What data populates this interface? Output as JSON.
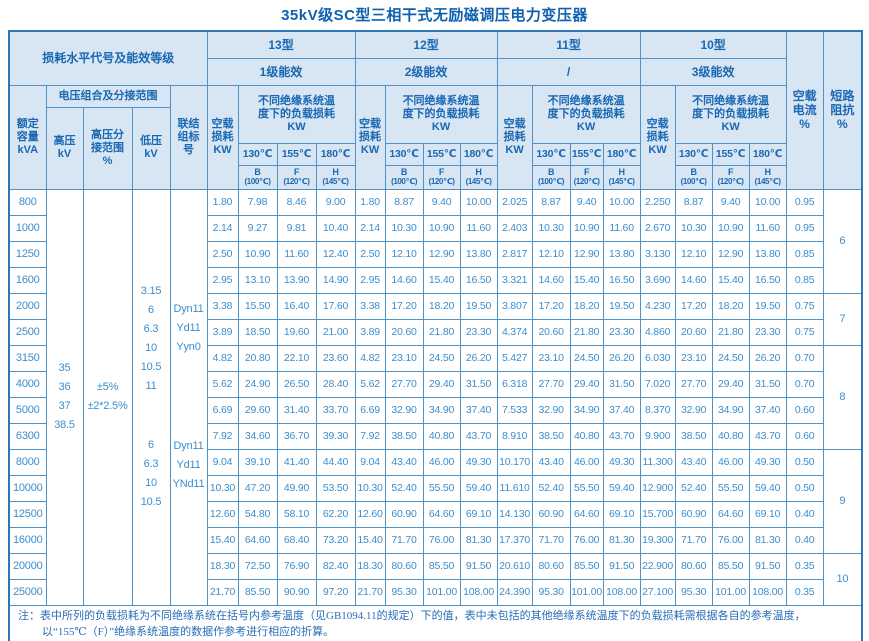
{
  "title": "35kV级SC型三相干式无励磁调压电力变压器",
  "header": {
    "loss_level_label": "损耗水平代号及能效等级",
    "models": [
      {
        "name": "13型",
        "efficiency": "1级能效"
      },
      {
        "name": "12型",
        "efficiency": "2级能效"
      },
      {
        "name": "11型",
        "efficiency": "/"
      },
      {
        "name": "10型",
        "efficiency": "3级能效"
      }
    ],
    "capacity_label": "额定\n容量\nkVA",
    "voltage_group_label": "电压组合及分接范围",
    "hv_label": "高压\nkV",
    "tap_label": "高压分\n接范围\n%",
    "lv_label": "低压\nkV",
    "vector_label": "联结\n组标\n号",
    "no_load_loss_label": "空载\n损耗\nKW",
    "load_loss_label": "不同绝缘系统温\n度下的负载损耗\nKW",
    "temp_cols": [
      {
        "temp": "130℃",
        "class": "B",
        "ref": "(100℃)"
      },
      {
        "temp": "155℃",
        "class": "F",
        "ref": "(120℃)"
      },
      {
        "temp": "180℃",
        "class": "H",
        "ref": "(145℃)"
      }
    ],
    "no_load_current_label": "空载\n电流\n%",
    "impedance_label": "短路\n阻抗\n%"
  },
  "left": {
    "hv_values": [
      "35",
      "36",
      "37",
      "38.5"
    ],
    "tap_values": [
      "±5%",
      "±2*2.5%"
    ],
    "lv_upper": [
      "3.15",
      "6",
      "6.3",
      "10",
      "10.5",
      "11"
    ],
    "lv_lower": [
      "6",
      "6.3",
      "10",
      "10.5"
    ],
    "vector_upper": [
      "Dyn11",
      "Yd11",
      "Yyn0"
    ],
    "vector_lower": [
      "Dyn11",
      "Yd11",
      "YNd11"
    ]
  },
  "rows": [
    {
      "capacity": "800",
      "values": [
        "1.80",
        "7.98",
        "8.46",
        "9.00",
        "1.80",
        "8.87",
        "9.40",
        "10.00",
        "2.025",
        "8.87",
        "9.40",
        "10.00",
        "2.250",
        "8.87",
        "9.40",
        "10.00"
      ],
      "current": "0.95"
    },
    {
      "capacity": "1000",
      "values": [
        "2.14",
        "9.27",
        "9.81",
        "10.40",
        "2.14",
        "10.30",
        "10.90",
        "11.60",
        "2.403",
        "10.30",
        "10.90",
        "11.60",
        "2.670",
        "10.30",
        "10.90",
        "11.60"
      ],
      "current": "0.95"
    },
    {
      "capacity": "1250",
      "values": [
        "2.50",
        "10.90",
        "11.60",
        "12.40",
        "2.50",
        "12.10",
        "12.90",
        "13.80",
        "2.817",
        "12.10",
        "12.90",
        "13.80",
        "3.130",
        "12.10",
        "12.90",
        "13.80"
      ],
      "current": "0.85"
    },
    {
      "capacity": "1600",
      "values": [
        "2.95",
        "13.10",
        "13.90",
        "14.90",
        "2.95",
        "14.60",
        "15.40",
        "16.50",
        "3.321",
        "14.60",
        "15.40",
        "16.50",
        "3.690",
        "14.60",
        "15.40",
        "16.50"
      ],
      "current": "0.85"
    },
    {
      "capacity": "2000",
      "values": [
        "3.38",
        "15.50",
        "16.40",
        "17.60",
        "3.38",
        "17.20",
        "18.20",
        "19.50",
        "3.807",
        "17.20",
        "18.20",
        "19.50",
        "4.230",
        "17.20",
        "18.20",
        "19.50"
      ],
      "current": "0.75"
    },
    {
      "capacity": "2500",
      "values": [
        "3.89",
        "18.50",
        "19.60",
        "21.00",
        "3.89",
        "20.60",
        "21.80",
        "23.30",
        "4.374",
        "20.60",
        "21.80",
        "23.30",
        "4.860",
        "20.60",
        "21.80",
        "23.30"
      ],
      "current": "0.75"
    },
    {
      "capacity": "3150",
      "values": [
        "4.82",
        "20.80",
        "22.10",
        "23.60",
        "4.82",
        "23.10",
        "24.50",
        "26.20",
        "5.427",
        "23.10",
        "24.50",
        "26.20",
        "6.030",
        "23.10",
        "24.50",
        "26.20"
      ],
      "current": "0.70"
    },
    {
      "capacity": "4000",
      "values": [
        "5.62",
        "24.90",
        "26.50",
        "28.40",
        "5.62",
        "27.70",
        "29.40",
        "31.50",
        "6.318",
        "27.70",
        "29.40",
        "31.50",
        "7.020",
        "27.70",
        "29.40",
        "31.50"
      ],
      "current": "0.70"
    },
    {
      "capacity": "5000",
      "values": [
        "6.69",
        "29.60",
        "31.40",
        "33.70",
        "6.69",
        "32.90",
        "34.90",
        "37.40",
        "7.533",
        "32.90",
        "34.90",
        "37.40",
        "8.370",
        "32.90",
        "34.90",
        "37.40"
      ],
      "current": "0.60"
    },
    {
      "capacity": "6300",
      "values": [
        "7.92",
        "34.60",
        "36.70",
        "39.30",
        "7.92",
        "38.50",
        "40.80",
        "43.70",
        "8.910",
        "38.50",
        "40.80",
        "43.70",
        "9.900",
        "38.50",
        "40.80",
        "43.70"
      ],
      "current": "0.60"
    },
    {
      "capacity": "8000",
      "values": [
        "9.04",
        "39.10",
        "41.40",
        "44.40",
        "9.04",
        "43.40",
        "46.00",
        "49.30",
        "10.170",
        "43.40",
        "46.00",
        "49.30",
        "11.300",
        "43.40",
        "46.00",
        "49.30"
      ],
      "current": "0.50"
    },
    {
      "capacity": "10000",
      "values": [
        "10.30",
        "47.20",
        "49.90",
        "53.50",
        "10.30",
        "52.40",
        "55.50",
        "59.40",
        "11.610",
        "52.40",
        "55.50",
        "59.40",
        "12.900",
        "52.40",
        "55.50",
        "59.40"
      ],
      "current": "0.50"
    },
    {
      "capacity": "12500",
      "values": [
        "12.60",
        "54.80",
        "58.10",
        "62.20",
        "12.60",
        "60.90",
        "64.60",
        "69.10",
        "14.130",
        "60.90",
        "64.60",
        "69.10",
        "15.700",
        "60.90",
        "64.60",
        "69.10"
      ],
      "current": "0.40"
    },
    {
      "capacity": "16000",
      "values": [
        "15.40",
        "64.60",
        "68.40",
        "73.20",
        "15.40",
        "71.70",
        "76.00",
        "81.30",
        "17.370",
        "71.70",
        "76.00",
        "81.30",
        "19.300",
        "71.70",
        "76.00",
        "81.30"
      ],
      "current": "0.40"
    },
    {
      "capacity": "20000",
      "values": [
        "18.30",
        "72.50",
        "76.90",
        "82.40",
        "18.30",
        "80.60",
        "85.50",
        "91.50",
        "20.610",
        "80.60",
        "85.50",
        "91.50",
        "22.900",
        "80.60",
        "85.50",
        "91.50"
      ],
      "current": "0.35"
    },
    {
      "capacity": "25000",
      "values": [
        "21.70",
        "85.50",
        "90.90",
        "97.20",
        "21.70",
        "95.30",
        "101.00",
        "108.00",
        "24.390",
        "95.30",
        "101.00",
        "108.00",
        "27.100",
        "95.30",
        "101.00",
        "108.00"
      ],
      "current": "0.35"
    }
  ],
  "impedance_groups": [
    {
      "value": "6",
      "span": 4
    },
    {
      "value": "7",
      "span": 2
    },
    {
      "value": "8",
      "span": 4
    },
    {
      "value": "9",
      "span": 4
    },
    {
      "value": "10",
      "span": 2
    }
  ],
  "note": {
    "label": "注：",
    "text": "表中所列的负载损耗为不同绝缘系统在括号内参考温度（见GB1094.11的规定）下的值，表中未包括的其他绝缘系统温度下的负载损耗需根据各自的参考温度，\n以“155℃（F）”绝缘系统温度的数据作参考进行相应的折算。"
  }
}
